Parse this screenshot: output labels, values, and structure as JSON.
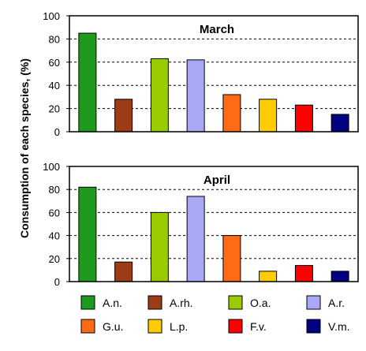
{
  "chart_data": {
    "type": "bar",
    "ylabel": "Consumption of each species, (%)",
    "ylim": [
      0,
      100
    ],
    "yticks": [
      0,
      20,
      40,
      60,
      80,
      100
    ],
    "grid": "horizontal-dashed",
    "legend_placement": "bottom",
    "series": [
      {
        "name": "A.n.",
        "color": "#1e9b1e"
      },
      {
        "name": "A.rh.",
        "color": "#9b3c14"
      },
      {
        "name": "O.a.",
        "color": "#99cc00"
      },
      {
        "name": "A.r.",
        "color": "#a8a8f5"
      },
      {
        "name": "G.u.",
        "color": "#ff6a14"
      },
      {
        "name": "L.p.",
        "color": "#ffcc00"
      },
      {
        "name": "F.v.",
        "color": "#ff0000"
      },
      {
        "name": "V.m.",
        "color": "#000080"
      }
    ],
    "panels": [
      {
        "title": "March",
        "values": [
          85,
          28,
          63,
          62,
          32,
          28,
          23,
          15
        ]
      },
      {
        "title": "April",
        "values": [
          82,
          17,
          60,
          74,
          40,
          9,
          14,
          9
        ]
      }
    ]
  }
}
